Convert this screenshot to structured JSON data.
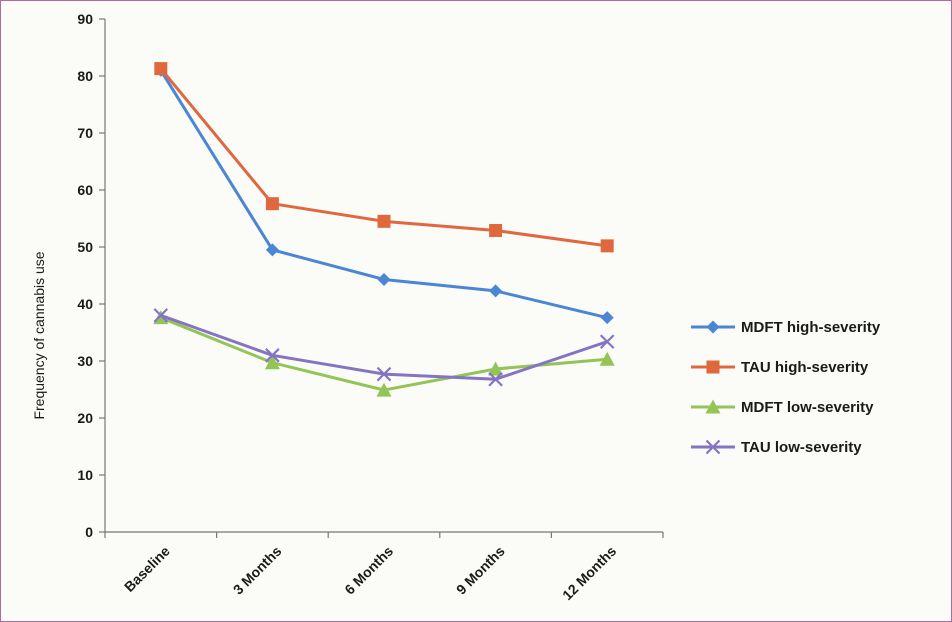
{
  "chart_data": {
    "type": "line",
    "title": "",
    "xlabel": "",
    "ylabel": "Frequency of cannabis use",
    "ylim": [
      0,
      90
    ],
    "yticks": [
      0,
      10,
      20,
      30,
      40,
      50,
      60,
      70,
      80,
      90
    ],
    "grid": false,
    "legend_position": "right",
    "categories": [
      "Baseline",
      "3 Months",
      "6 Months",
      "9 Months",
      "12 Months"
    ],
    "series": [
      {
        "name": "MDFT high-severity",
        "marker": "diamond",
        "color": "#4a86d4",
        "values": [
          81.0,
          49.5,
          44.3,
          42.3,
          37.6
        ]
      },
      {
        "name": "TAU high-severity",
        "marker": "square",
        "color": "#e0683e",
        "values": [
          81.3,
          57.6,
          54.5,
          52.9,
          50.2
        ]
      },
      {
        "name": "MDFT low-severity",
        "marker": "triangle",
        "color": "#92c456",
        "values": [
          37.6,
          29.7,
          24.9,
          28.6,
          30.3
        ]
      },
      {
        "name": "TAU low-severity",
        "marker": "x",
        "color": "#8573c4",
        "values": [
          38.0,
          31.0,
          27.7,
          26.8,
          33.4
        ]
      }
    ]
  }
}
